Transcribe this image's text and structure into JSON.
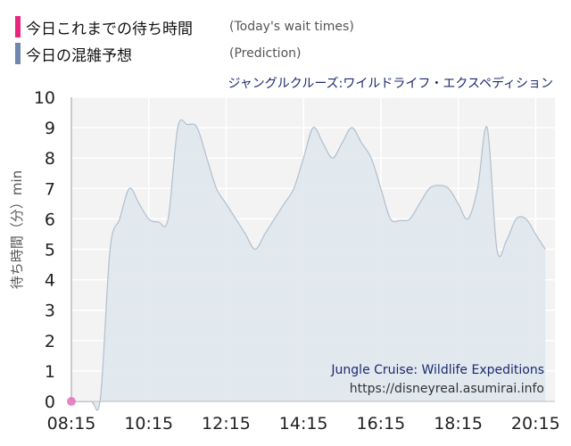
{
  "legend": [
    {
      "label": "今日これまでの待ち時間",
      "sub": "(Today's wait times)",
      "color": "#e8267e"
    },
    {
      "label": "今日の混雑予想",
      "sub": "(Prediction)",
      "color": "#6f86ad"
    }
  ],
  "attraction": {
    "name_jp": "ジャングルクルーズ:ワイルドライフ・エクスペディション",
    "name_en": "Jungle Cruise: Wildlife Expeditions",
    "url": "https://disneyreal.asumirai.info"
  },
  "chart_data": {
    "type": "area",
    "ylabel": "待ち時間（分）min",
    "ylim": [
      0,
      10
    ],
    "yticks": [
      0,
      1,
      2,
      3,
      4,
      5,
      6,
      7,
      8,
      9,
      10
    ],
    "xticks": [
      "08:15",
      "10:15",
      "12:15",
      "14:15",
      "16:15",
      "18:15",
      "20:15"
    ],
    "grid": true,
    "colors": {
      "prediction_fill": "#dde5ec",
      "prediction_line": "#b3bfcc",
      "today": "#e56fc0",
      "plot_bg": "#f3f3f3"
    },
    "series": [
      {
        "name": "今日の混雑予想",
        "x": [
          "08:15",
          "08:45",
          "09:00",
          "09:15",
          "09:30",
          "09:45",
          "10:00",
          "10:15",
          "10:30",
          "10:45",
          "11:00",
          "11:15",
          "11:30",
          "11:45",
          "12:00",
          "12:15",
          "12:30",
          "12:45",
          "13:00",
          "13:15",
          "13:30",
          "13:45",
          "14:00",
          "14:15",
          "14:30",
          "14:45",
          "15:00",
          "15:15",
          "15:30",
          "15:45",
          "16:00",
          "16:15",
          "16:30",
          "16:45",
          "17:00",
          "17:15",
          "17:30",
          "17:45",
          "18:00",
          "18:15",
          "18:30",
          "18:45",
          "19:00",
          "19:15",
          "19:30",
          "19:45",
          "20:00",
          "20:15",
          "20:30"
        ],
        "values": [
          0,
          0,
          0.1,
          5,
          6,
          7,
          6.5,
          6,
          5.9,
          6,
          9,
          9.1,
          9,
          8,
          7,
          6.5,
          6,
          5.5,
          5,
          5.5,
          6,
          6.5,
          7,
          8,
          9,
          8.5,
          8,
          8.5,
          9,
          8.5,
          8,
          7,
          6,
          5.95,
          6,
          6.5,
          7,
          7.1,
          7,
          6.5,
          6,
          7,
          9,
          5,
          5.3,
          6,
          6,
          5.5,
          5
        ]
      },
      {
        "name": "今日これまでの待ち時間",
        "x": [
          "08:15"
        ],
        "values": [
          0
        ]
      }
    ]
  }
}
